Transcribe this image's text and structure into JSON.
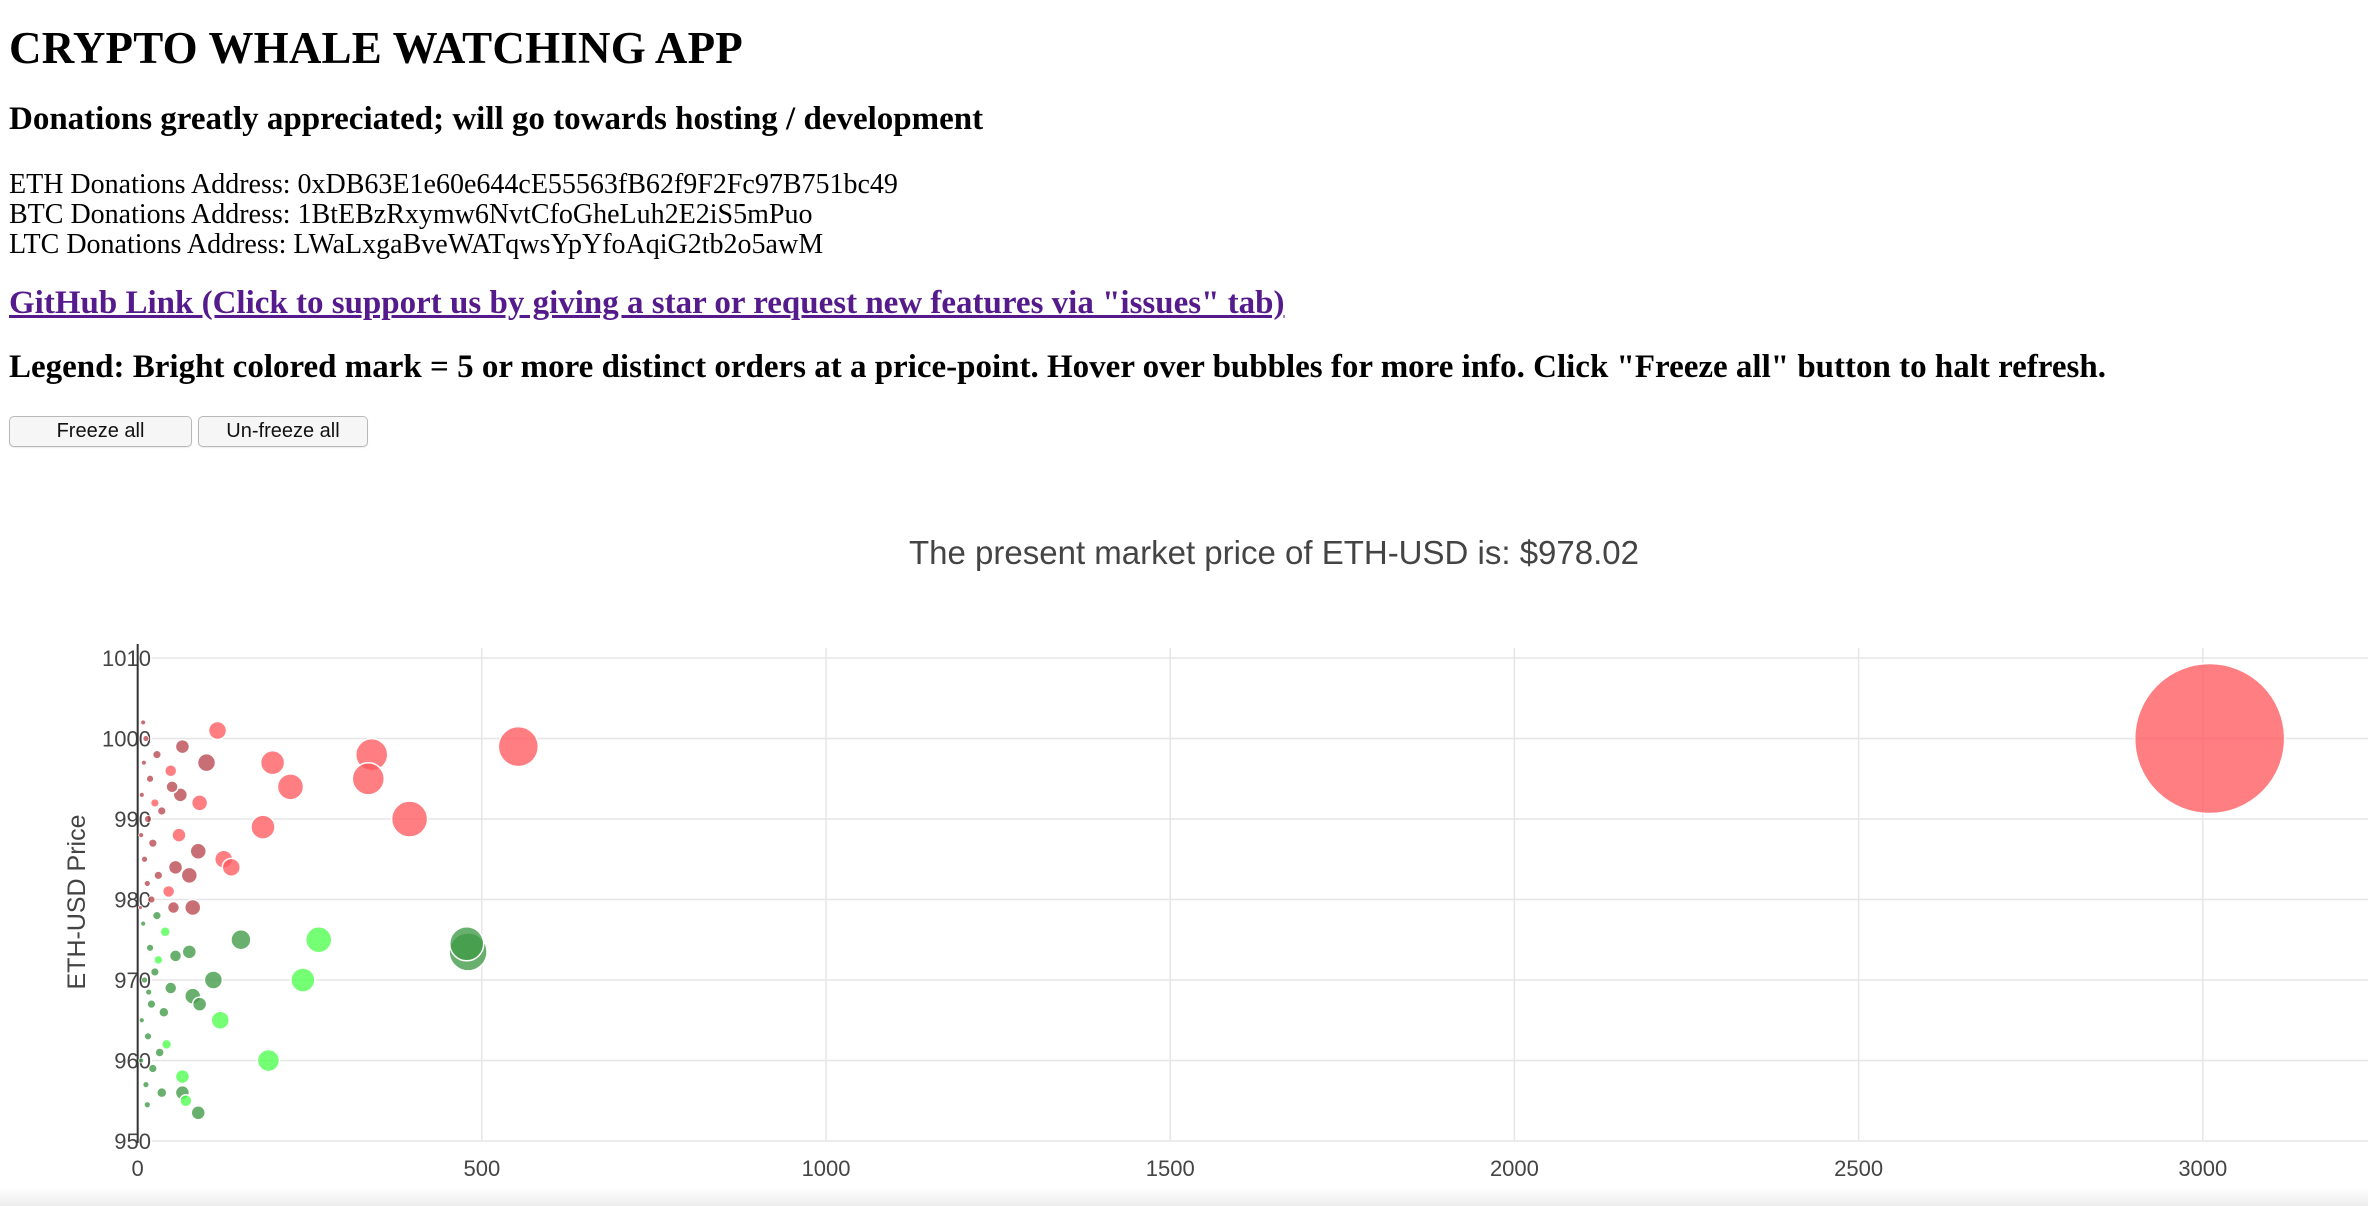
{
  "header": {
    "title": "CRYPTO WHALE WATCHING APP",
    "donations_title": "Donations greatly appreciated; will go towards hosting / development",
    "addresses": [
      "ETH Donations Address: 0xDB63E1e60e644cE55563fB62f9F2Fc97B751bc49",
      "BTC Donations Address: 1BtEBzRxymw6NvtCfoGheLuh2E2iS5mPuo",
      "LTC Donations Address: LWaLxgaBveWATqwsYpYfoAqiG2tb2o5awM"
    ],
    "github_link": "GitHub Link (Click to support us by giving a star or request new features via \"issues\" tab)",
    "legend": "Legend: Bright colored mark = 5 or more distinct orders at a price-point. Hover over bubbles for more info. Click \"Freeze all\" button to halt refresh."
  },
  "controls": {
    "freeze_label": "Freeze all",
    "unfreeze_label": "Un-freeze all"
  },
  "colors": {
    "ask_bright": "#ff5a5f",
    "ask_dark": "#b8474e",
    "bid_bright": "#4dff4d",
    "bid_dark": "#3f9a45"
  },
  "chart_data": {
    "type": "scatter",
    "title": "The present market price of ETH-USD is: $978.02",
    "xlabel": "",
    "ylabel": "ETH-USD Price",
    "xlim": [
      -200,
      3240
    ],
    "ylim": [
      949.5,
      1011
    ],
    "x_ticks": [
      0,
      500,
      1000,
      1500,
      2000,
      2500,
      3000
    ],
    "y_ticks": [
      950,
      960,
      970,
      980,
      990,
      1000,
      1010
    ],
    "grid": true,
    "series": [
      {
        "side": "ask",
        "points": [
          {
            "x": 3010,
            "y": 1000,
            "size": 150,
            "bright": true
          },
          {
            "x": 553,
            "y": 999,
            "size": 40,
            "bright": true
          },
          {
            "x": 340,
            "y": 998,
            "size": 32,
            "bright": true
          },
          {
            "x": 335,
            "y": 995,
            "size": 32,
            "bright": true
          },
          {
            "x": 395,
            "y": 990,
            "size": 36,
            "bright": true
          },
          {
            "x": 196,
            "y": 997,
            "size": 24,
            "bright": true
          },
          {
            "x": 222,
            "y": 994,
            "size": 26,
            "bright": true
          },
          {
            "x": 182,
            "y": 989,
            "size": 24,
            "bright": true
          },
          {
            "x": 116,
            "y": 1001,
            "size": 18,
            "bright": true
          },
          {
            "x": 125,
            "y": 985,
            "size": 18,
            "bright": true
          },
          {
            "x": 136,
            "y": 984,
            "size": 18,
            "bright": true
          },
          {
            "x": 100,
            "y": 997,
            "size": 18,
            "bright": false
          },
          {
            "x": 65,
            "y": 999,
            "size": 14,
            "bright": false
          },
          {
            "x": 90,
            "y": 992,
            "size": 16,
            "bright": true
          },
          {
            "x": 62,
            "y": 993,
            "size": 14,
            "bright": false
          },
          {
            "x": 48,
            "y": 996,
            "size": 12,
            "bright": true
          },
          {
            "x": 50,
            "y": 994,
            "size": 12,
            "bright": false
          },
          {
            "x": 60,
            "y": 988,
            "size": 14,
            "bright": true
          },
          {
            "x": 88,
            "y": 986,
            "size": 16,
            "bright": false
          },
          {
            "x": 75,
            "y": 983,
            "size": 16,
            "bright": false
          },
          {
            "x": 55,
            "y": 984,
            "size": 14,
            "bright": false
          },
          {
            "x": 45,
            "y": 981,
            "size": 12,
            "bright": true
          },
          {
            "x": 80,
            "y": 979,
            "size": 16,
            "bright": false
          },
          {
            "x": 52,
            "y": 979,
            "size": 12,
            "bright": false
          },
          {
            "x": 28,
            "y": 998,
            "size": 8,
            "bright": false
          },
          {
            "x": 35,
            "y": 991,
            "size": 8,
            "bright": false
          },
          {
            "x": 22,
            "y": 987,
            "size": 8,
            "bright": false
          },
          {
            "x": 30,
            "y": 983,
            "size": 8,
            "bright": false
          },
          {
            "x": 18,
            "y": 995,
            "size": 7,
            "bright": false
          },
          {
            "x": 12,
            "y": 1000,
            "size": 6,
            "bright": false
          },
          {
            "x": 8,
            "y": 1002,
            "size": 5,
            "bright": false
          },
          {
            "x": 15,
            "y": 990,
            "size": 7,
            "bright": false
          },
          {
            "x": 10,
            "y": 985,
            "size": 6,
            "bright": false
          },
          {
            "x": 20,
            "y": 980,
            "size": 7,
            "bright": false
          },
          {
            "x": 6,
            "y": 993,
            "size": 5,
            "bright": false
          },
          {
            "x": 9,
            "y": 997,
            "size": 5,
            "bright": false
          },
          {
            "x": 14,
            "y": 982,
            "size": 6,
            "bright": false
          },
          {
            "x": 5,
            "y": 988,
            "size": 5,
            "bright": false
          },
          {
            "x": 25,
            "y": 992,
            "size": 8,
            "bright": true
          },
          {
            "x": 4,
            "y": 979,
            "size": 4,
            "bright": false
          }
        ]
      },
      {
        "side": "bid",
        "points": [
          {
            "x": 480,
            "y": 973.5,
            "size": 38,
            "bright": false
          },
          {
            "x": 478,
            "y": 974.5,
            "size": 34,
            "bright": false
          },
          {
            "x": 263,
            "y": 975,
            "size": 26,
            "bright": true
          },
          {
            "x": 150,
            "y": 975,
            "size": 20,
            "bright": false
          },
          {
            "x": 240,
            "y": 970,
            "size": 24,
            "bright": true
          },
          {
            "x": 190,
            "y": 960,
            "size": 22,
            "bright": true
          },
          {
            "x": 110,
            "y": 970,
            "size": 18,
            "bright": false
          },
          {
            "x": 120,
            "y": 965,
            "size": 18,
            "bright": true
          },
          {
            "x": 75,
            "y": 973.5,
            "size": 14,
            "bright": false
          },
          {
            "x": 80,
            "y": 968,
            "size": 16,
            "bright": false
          },
          {
            "x": 90,
            "y": 967,
            "size": 14,
            "bright": false
          },
          {
            "x": 88,
            "y": 953.5,
            "size": 14,
            "bright": false
          },
          {
            "x": 65,
            "y": 958,
            "size": 14,
            "bright": true
          },
          {
            "x": 65,
            "y": 956,
            "size": 14,
            "bright": false
          },
          {
            "x": 70,
            "y": 955,
            "size": 12,
            "bright": true
          },
          {
            "x": 55,
            "y": 973,
            "size": 12,
            "bright": false
          },
          {
            "x": 48,
            "y": 969,
            "size": 12,
            "bright": false
          },
          {
            "x": 40,
            "y": 976,
            "size": 10,
            "bright": true
          },
          {
            "x": 38,
            "y": 966,
            "size": 10,
            "bright": false
          },
          {
            "x": 42,
            "y": 962,
            "size": 10,
            "bright": true
          },
          {
            "x": 35,
            "y": 956,
            "size": 10,
            "bright": false
          },
          {
            "x": 25,
            "y": 971,
            "size": 8,
            "bright": false
          },
          {
            "x": 20,
            "y": 967,
            "size": 8,
            "bright": false
          },
          {
            "x": 18,
            "y": 974,
            "size": 7,
            "bright": false
          },
          {
            "x": 15,
            "y": 963,
            "size": 7,
            "bright": false
          },
          {
            "x": 22,
            "y": 959,
            "size": 8,
            "bright": false
          },
          {
            "x": 12,
            "y": 957,
            "size": 6,
            "bright": false
          },
          {
            "x": 10,
            "y": 970,
            "size": 6,
            "bright": false
          },
          {
            "x": 8,
            "y": 977,
            "size": 5,
            "bright": false
          },
          {
            "x": 14,
            "y": 954.5,
            "size": 6,
            "bright": false
          },
          {
            "x": 6,
            "y": 965,
            "size": 5,
            "bright": false
          },
          {
            "x": 28,
            "y": 978,
            "size": 8,
            "bright": false
          },
          {
            "x": 30,
            "y": 972.5,
            "size": 9,
            "bright": true
          },
          {
            "x": 5,
            "y": 960,
            "size": 5,
            "bright": false
          },
          {
            "x": 16,
            "y": 968.5,
            "size": 6,
            "bright": false
          },
          {
            "x": 32,
            "y": 961,
            "size": 9,
            "bright": false
          }
        ]
      }
    ]
  }
}
